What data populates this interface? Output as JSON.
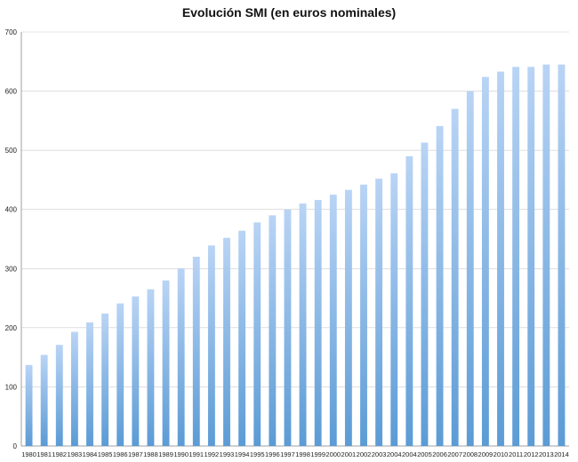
{
  "chart_data": {
    "type": "bar",
    "title": "Evolución SMI (en euros nominales)",
    "xlabel": "",
    "ylabel": "",
    "ylim": [
      0,
      700
    ],
    "yticks": [
      0,
      100,
      200,
      300,
      400,
      500,
      600,
      700
    ],
    "grid": true,
    "legend": "none",
    "colors": {
      "bar_top": "#b9d4f5",
      "bar_bottom": "#5b9bd5",
      "grid": "#cccccc",
      "axis": "#888888"
    },
    "categories": [
      "1980",
      "1981",
      "1982",
      "1983",
      "1984",
      "1985",
      "1986",
      "1987",
      "1988",
      "1989",
      "1990",
      "1991",
      "1992",
      "1993",
      "1994",
      "1995",
      "1996",
      "1997",
      "1998",
      "1999",
      "2000",
      "2001",
      "2002",
      "2003",
      "2004",
      "2004",
      "2005",
      "2006",
      "2007",
      "2008",
      "2009",
      "2010",
      "2011",
      "2012",
      "2013",
      "2014"
    ],
    "values": [
      137,
      154,
      171,
      193,
      209,
      224,
      241,
      253,
      265,
      280,
      300,
      320,
      339,
      352,
      364,
      378,
      390,
      400,
      410,
      416,
      425,
      433,
      442,
      452,
      461,
      490,
      513,
      541,
      570,
      600,
      624,
      633,
      641,
      641,
      645,
      645
    ]
  }
}
